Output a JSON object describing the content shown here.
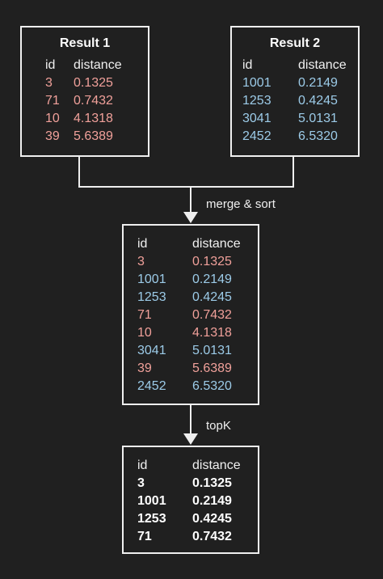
{
  "result1": {
    "title": "Result 1",
    "headers": {
      "id": "id",
      "distance": "distance"
    },
    "rows": [
      {
        "id": "3",
        "distance": "0.1325"
      },
      {
        "id": "71",
        "distance": "0.7432"
      },
      {
        "id": "10",
        "distance": "4.1318"
      },
      {
        "id": "39",
        "distance": "5.6389"
      }
    ]
  },
  "result2": {
    "title": "Result 2",
    "headers": {
      "id": "id",
      "distance": "distance"
    },
    "rows": [
      {
        "id": "1001",
        "distance": "0.2149"
      },
      {
        "id": "1253",
        "distance": "0.4245"
      },
      {
        "id": "3041",
        "distance": "5.0131"
      },
      {
        "id": "2452",
        "distance": "6.5320"
      }
    ]
  },
  "edges": {
    "merge_label": "merge & sort",
    "topk_label": "topK"
  },
  "merged": {
    "headers": {
      "id": "id",
      "distance": "distance"
    },
    "rows": [
      {
        "id": "3",
        "distance": "0.1325",
        "source": "result1"
      },
      {
        "id": "1001",
        "distance": "0.2149",
        "source": "result2"
      },
      {
        "id": "1253",
        "distance": "0.4245",
        "source": "result2"
      },
      {
        "id": "71",
        "distance": "0.7432",
        "source": "result1"
      },
      {
        "id": "10",
        "distance": "4.1318",
        "source": "result1"
      },
      {
        "id": "3041",
        "distance": "5.0131",
        "source": "result2"
      },
      {
        "id": "39",
        "distance": "5.6389",
        "source": "result1"
      },
      {
        "id": "2452",
        "distance": "6.5320",
        "source": "result2"
      }
    ]
  },
  "topk": {
    "headers": {
      "id": "id",
      "distance": "distance"
    },
    "rows": [
      {
        "id": "3",
        "distance": "0.1325"
      },
      {
        "id": "1001",
        "distance": "0.2149"
      },
      {
        "id": "1253",
        "distance": "0.4245"
      },
      {
        "id": "71",
        "distance": "0.7432"
      }
    ]
  },
  "colors": {
    "background": "#202020",
    "border": "#efefef",
    "result1_text": "#f0a09a",
    "result2_text": "#9ccbe8",
    "text": "#f0f0f0"
  }
}
